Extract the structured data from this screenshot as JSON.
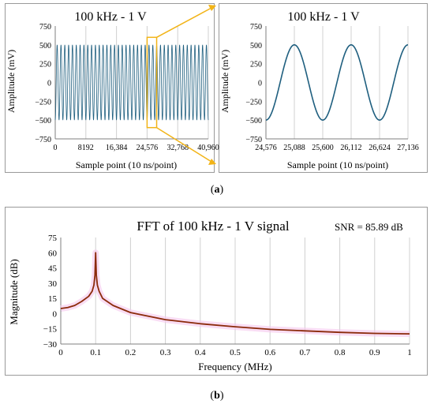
{
  "chart_data": [
    {
      "type": "line",
      "title": "100 kHz - 1 V",
      "xlabel": "Sample point (10 ns/point)",
      "ylabel": "Amplitude (mV)",
      "xlim": [
        0,
        40960
      ],
      "ylim": [
        -750,
        750
      ],
      "xticks": [
        0,
        8192,
        16384,
        24576,
        32768,
        40960
      ],
      "xtick_labels": [
        "0",
        "8192",
        "16,384",
        "24,576",
        "32,768",
        "40,960"
      ],
      "yticks": [
        -750,
        -500,
        -250,
        0,
        250,
        500,
        750
      ],
      "ytick_labels": [
        "−750",
        "−500",
        "−250",
        "0",
        "250",
        "500",
        "750"
      ],
      "grid": "vertical",
      "series": [
        {
          "signal": "sine",
          "amplitude": 500,
          "period_samples": 1024,
          "phase_reference_sample": 24576,
          "value_at_reference": -500
        }
      ],
      "color": "#1f5f7f"
    },
    {
      "type": "line",
      "title": "100 kHz - 1 V",
      "xlabel": "Sample point (10 ns/point)",
      "ylabel": "Amplitude (mV)",
      "xlim": [
        24576,
        27136
      ],
      "ylim": [
        -750,
        750
      ],
      "xticks": [
        24576,
        25088,
        25600,
        26112,
        26624,
        27136
      ],
      "xtick_labels": [
        "24,576",
        "25,088",
        "25,600",
        "26,112",
        "26,624",
        "27,136"
      ],
      "yticks": [
        -750,
        -500,
        -250,
        0,
        250,
        500,
        750
      ],
      "ytick_labels": [
        "−750",
        "−500",
        "−250",
        "0",
        "250",
        "500",
        "750"
      ],
      "grid": "vertical",
      "series": [
        {
          "signal": "sine",
          "amplitude": 500,
          "period_samples": 1024,
          "phase_reference_sample": 24576,
          "value_at_reference": -500
        }
      ],
      "color": "#1f5f7f"
    },
    {
      "type": "line",
      "title": "FFT of 100 kHz - 1 V signal",
      "annotation": "SNR = 85.89 dB",
      "xlabel": "Frequency (MHz)",
      "ylabel": "Magnitude (dB)",
      "xlim": [
        0,
        1
      ],
      "ylim": [
        -30,
        75
      ],
      "xticks": [
        0,
        0.1,
        0.2,
        0.3,
        0.4,
        0.5,
        0.6,
        0.7,
        0.8,
        0.9,
        1
      ],
      "xtick_labels": [
        "0",
        "0.1",
        "0.2",
        "0.3",
        "0.4",
        "0.5",
        "0.6",
        "0.7",
        "0.8",
        "0.9",
        "1"
      ],
      "yticks": [
        -30,
        -15,
        0,
        15,
        30,
        45,
        60,
        75
      ],
      "ytick_labels": [
        "−30",
        "−15",
        "0",
        "15",
        "30",
        "45",
        "60",
        "75"
      ],
      "grid": "vertical",
      "series": [
        {
          "x": [
            0,
            0.02,
            0.04,
            0.06,
            0.08,
            0.09,
            0.095,
            0.098,
            0.1,
            0.102,
            0.105,
            0.11,
            0.12,
            0.15,
            0.2,
            0.3,
            0.4,
            0.5,
            0.6,
            0.7,
            0.8,
            0.9,
            1
          ],
          "y": [
            5,
            6,
            8,
            12,
            17,
            22,
            28,
            38,
            60,
            38,
            28,
            22,
            15,
            8,
            1,
            -6,
            -10,
            -13,
            -15.5,
            -17,
            -18.5,
            -19.5,
            -20
          ]
        }
      ],
      "color": "#8b2a0a",
      "band_color": "#f5c6ec"
    }
  ],
  "figure": {
    "label_a": "(a)",
    "label_b": "(b)",
    "label_a_letter": "a",
    "label_b_letter": "b",
    "zoom_color": "#f2b418"
  }
}
